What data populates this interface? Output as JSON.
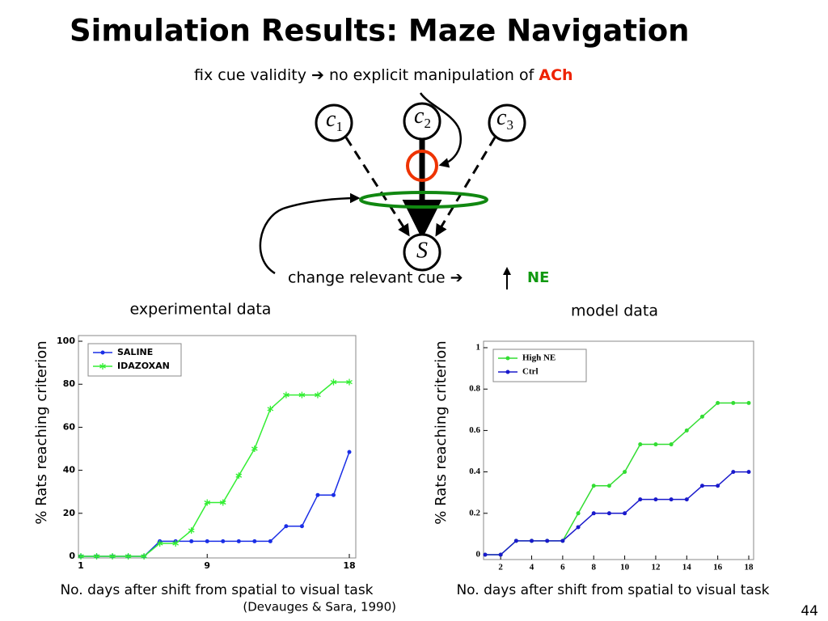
{
  "title": "Simulation Results: Maze Navigation",
  "subtitle": {
    "text": "fix cue validity ➔ no explicit manipulation of",
    "highlight": "ACh"
  },
  "diagram": {
    "nodes": [
      {
        "symbol": "c",
        "subscript": "1"
      },
      {
        "symbol": "c",
        "subscript": "2"
      },
      {
        "symbol": "c",
        "subscript": "3"
      },
      {
        "symbol": "S"
      }
    ],
    "caption": {
      "text": "change relevant cue ➔",
      "highlight": "NE"
    }
  },
  "chart_data": [
    {
      "type": "line",
      "title": "experimental data",
      "xlabel": "No. days after shift from spatial to visual task",
      "ylabel": "% Rats reaching criterion",
      "x": [
        1,
        2,
        3,
        4,
        5,
        6,
        7,
        8,
        9,
        10,
        11,
        12,
        13,
        14,
        15,
        16,
        17,
        18
      ],
      "xlim": [
        1,
        18
      ],
      "xticks": [
        1,
        9,
        18
      ],
      "ylim": [
        0,
        100
      ],
      "yticks": [
        0,
        20,
        40,
        60,
        80,
        100
      ],
      "legend": "upper left",
      "series": [
        {
          "name": "SALINE",
          "color": "#1a2ee6",
          "marker": "dot",
          "values": [
            0,
            0,
            0,
            0,
            0,
            7,
            7,
            7,
            7,
            7,
            7,
            7,
            7,
            14,
            14,
            28.5,
            28.5,
            48.5
          ]
        },
        {
          "name": "IDAZOXAN",
          "color": "#33ee33",
          "marker": "star",
          "values": [
            0,
            0,
            0,
            0,
            0,
            6,
            6,
            12,
            25,
            25,
            37.5,
            50,
            68.5,
            75,
            75,
            75,
            81,
            81
          ]
        }
      ]
    },
    {
      "type": "line",
      "title": "model data",
      "xlabel": "No. days after shift from spatial to visual task",
      "ylabel": "% Rats reaching criterion",
      "x": [
        1,
        2,
        3,
        4,
        5,
        6,
        7,
        8,
        9,
        10,
        11,
        12,
        13,
        14,
        15,
        16,
        17,
        18
      ],
      "xlim": [
        1,
        18
      ],
      "xticks": [
        2,
        4,
        6,
        8,
        10,
        12,
        14,
        16,
        18
      ],
      "ylim": [
        0,
        1
      ],
      "yticks": [
        0,
        0.2,
        0.4,
        0.6,
        0.8,
        1
      ],
      "legend": "upper left",
      "series": [
        {
          "name": "High NE",
          "color": "#33dd33",
          "marker": "dot",
          "values": [
            0,
            0,
            0.067,
            0.067,
            0.067,
            0.067,
            0.2,
            0.333,
            0.333,
            0.4,
            0.533,
            0.533,
            0.533,
            0.6,
            0.667,
            0.733,
            0.733,
            0.733
          ]
        },
        {
          "name": "Ctrl",
          "color": "#1a1acc",
          "marker": "dot",
          "values": [
            0,
            0,
            0.067,
            0.067,
            0.067,
            0.067,
            0.133,
            0.2,
            0.2,
            0.2,
            0.267,
            0.267,
            0.267,
            0.267,
            0.333,
            0.333,
            0.4,
            0.4
          ]
        }
      ]
    }
  ],
  "citation": "(Devauges & Sara, 1990)",
  "page_number": "44"
}
